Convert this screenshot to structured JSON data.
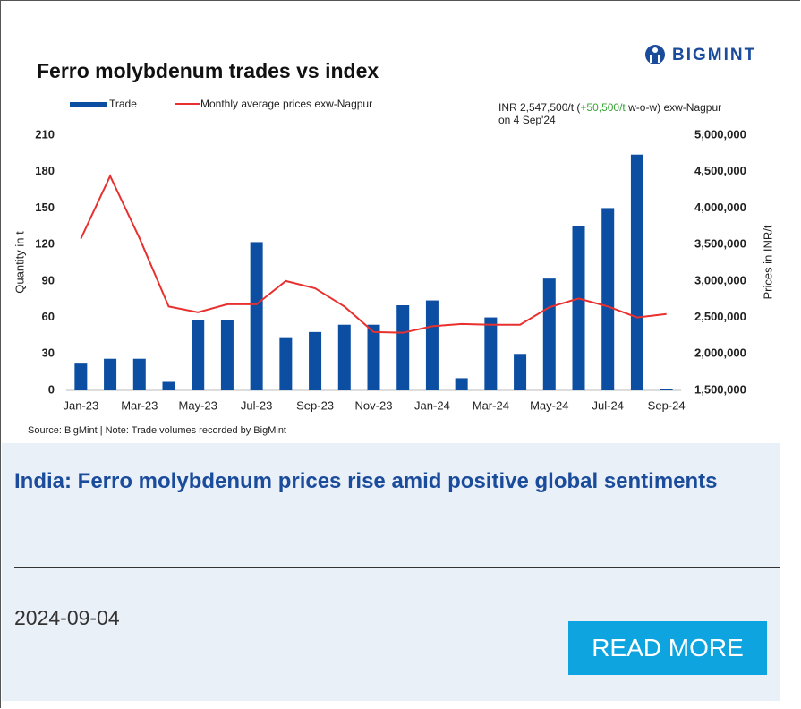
{
  "chart_data": {
    "type": "bar",
    "brand": "BIGMINT",
    "title": "Ferro molybdenum trades vs index",
    "annotation": {
      "line1": "INR 2,547,500/t (",
      "change": "+50,500/t",
      "line1_end": " w-o-w)  exw-Nagpur",
      "line2": "on 4 Sep'24"
    },
    "ylabel": "Quantity in t",
    "y2label": "Prices in INR/t",
    "source": "Source: BigMint | Note: Trade volumes recorded by BigMint",
    "categories": [
      "Jan-23",
      null,
      "Mar-23",
      null,
      "May-23",
      null,
      "Jul-23",
      null,
      "Sep-23",
      null,
      "Nov-23",
      null,
      "Jan-24",
      null,
      "Mar-24",
      null,
      "May-24",
      null,
      "Jul-24",
      null,
      "Sep-24"
    ],
    "series": [
      {
        "name": "Trade",
        "type": "bar",
        "color": "#0b4ea2",
        "values": [
          22,
          26,
          26,
          7,
          58,
          58,
          122,
          43,
          48,
          54,
          54,
          70,
          74,
          10,
          60,
          30,
          92,
          135,
          150,
          194,
          1
        ]
      },
      {
        "name": "Monthly average prices exw-Nagpur",
        "type": "line",
        "axis": "y2",
        "color": "#e8312f",
        "values": [
          3580000,
          4440000,
          3590000,
          2650000,
          2570000,
          2680000,
          2680000,
          3000000,
          2900000,
          2650000,
          2300000,
          2290000,
          2380000,
          2410000,
          2400000,
          2400000,
          2640000,
          2760000,
          2650000,
          2500000,
          2547500
        ]
      }
    ],
    "ylim": [
      0,
      210
    ],
    "yticks": [
      0,
      30,
      60,
      90,
      120,
      150,
      180,
      210
    ],
    "y2lim": [
      1500000,
      5000000
    ],
    "y2ticks": [
      {
        "value": 1500000,
        "label": "1,500,000"
      },
      {
        "value": 2000000,
        "label": "2,000,000"
      },
      {
        "value": 2500000,
        "label": "2,500,000"
      },
      {
        "value": 3000000,
        "label": "3,000,000"
      },
      {
        "value": 3500000,
        "label": "3,500,000"
      },
      {
        "value": 4000000,
        "label": "4,000,000"
      },
      {
        "value": 4500000,
        "label": "4,500,000"
      },
      {
        "value": 5000000,
        "label": "5,000,000"
      }
    ],
    "grid": false
  },
  "article": {
    "title": "India: Ferro molybdenum prices rise amid positive global sentiments",
    "date": "2024-09-04",
    "button": "READ MORE"
  }
}
